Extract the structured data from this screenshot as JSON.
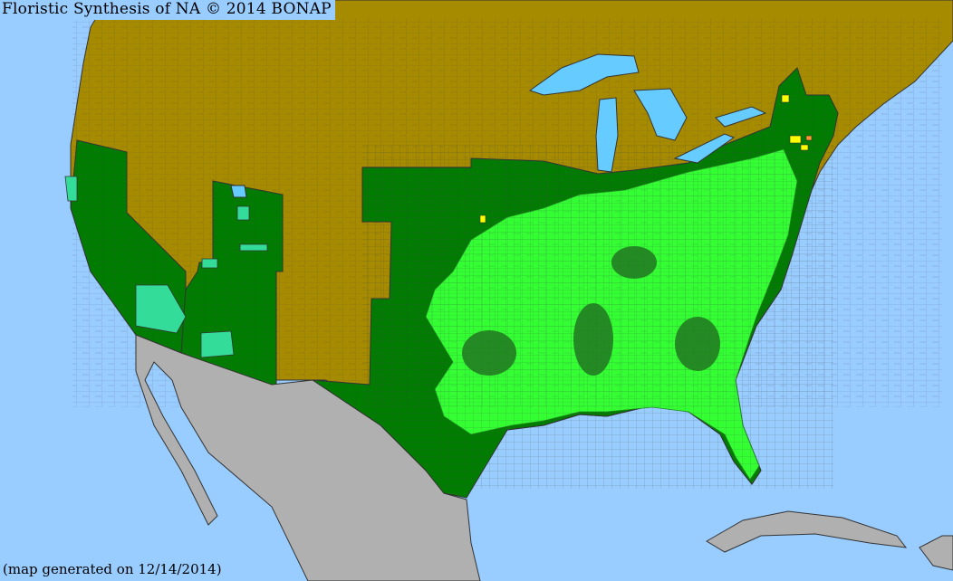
{
  "title": "Floristic Synthesis of NA © 2014 BONAP",
  "footer": "(map generated on 12/14/2014)",
  "colors": {
    "ocean": "#99ccff",
    "lakes": "#66ccff",
    "not_present": "#a68a00",
    "present_state": "#007c00",
    "present_county": "#33ff33",
    "rare_or_adventive": "#33dd99",
    "noxious_or_extirpated": "#ffff00",
    "other_county": "#ff9933",
    "outside_region": "#b0b0b0",
    "borders": "#404060"
  }
}
